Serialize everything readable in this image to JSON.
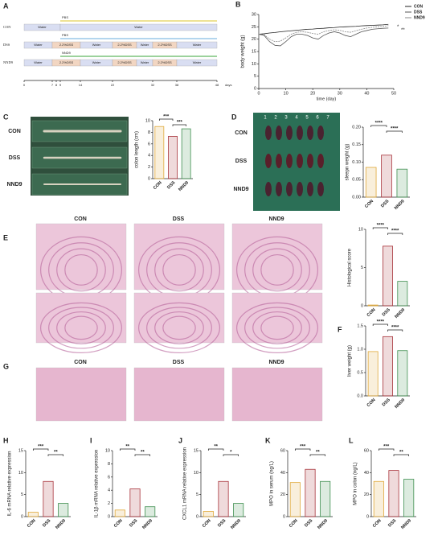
{
  "diagram": {
    "panel": "A",
    "rows": [
      {
        "name": "CON",
        "above": "PBS",
        "segments": [
          "Water",
          "Water"
        ]
      },
      {
        "name": "DSS",
        "above": "PBS",
        "segments": [
          "Water",
          "2.2%DSS",
          "Water",
          "2.2%DSS",
          "Water",
          "2.2%DSS",
          "Water"
        ]
      },
      {
        "name": "NND9",
        "above": "NND9",
        "segments": [
          "Water",
          "2.2%DSS",
          "Water",
          "2.2%DSS",
          "Water",
          "2.2%DSS",
          "Water"
        ]
      }
    ],
    "days": [
      "0",
      "7",
      "8",
      "9",
      "14",
      "22",
      "32",
      "38",
      "48"
    ],
    "unit": "days"
  },
  "photos": {
    "C": [
      "CON",
      "DSS",
      "NND9"
    ],
    "D": [
      "CON",
      "DSS",
      "NND9"
    ],
    "ruler": [
      "1",
      "2",
      "3",
      "4",
      "5",
      "6",
      "7"
    ]
  },
  "histology": {
    "columns": [
      "CON",
      "DSS",
      "NND9"
    ],
    "panel": "G",
    "columns_g": [
      "CON",
      "DSS",
      "NND9"
    ]
  },
  "chart_data": [
    {
      "type": "line",
      "panel": "B",
      "xlabel": "time (day)",
      "ylabel": "body weight (g)",
      "x": [
        0,
        2,
        4,
        6,
        8,
        10,
        12,
        14,
        16,
        18,
        20,
        22,
        24,
        26,
        28,
        30,
        32,
        34,
        36,
        38,
        40,
        42,
        44,
        46,
        48
      ],
      "series": [
        {
          "name": "CON",
          "color": "#222222",
          "values": [
            22,
            22.2,
            22.5,
            22.7,
            23,
            23.2,
            23.4,
            23.6,
            23.8,
            24,
            24.1,
            24.3,
            24.4,
            24.6,
            24.7,
            24.9,
            25,
            25.1,
            25.2,
            25.4,
            25.5,
            25.6,
            25.7,
            25.8,
            26
          ]
        },
        {
          "name": "DSS",
          "color": "#555555",
          "values": [
            22,
            21.5,
            19,
            17.5,
            17.3,
            19,
            21,
            22,
            22,
            21.5,
            20.5,
            20,
            21.5,
            22.5,
            23,
            22.5,
            21.5,
            21,
            22,
            23,
            23.5,
            24,
            24.2,
            24.4,
            24.5
          ]
        },
        {
          "name": "NND9",
          "color": "#888888",
          "values": [
            22,
            21.8,
            20,
            19,
            19.2,
            20.5,
            22,
            22.8,
            23,
            22.8,
            22.3,
            22,
            23,
            23.5,
            23.8,
            23.6,
            23,
            22.8,
            23.4,
            24,
            24.5,
            24.8,
            25,
            25.2,
            25.5
          ]
        }
      ],
      "xlim": [
        0,
        50
      ],
      "xticks": [
        0,
        10,
        20,
        30,
        40,
        50
      ],
      "ylim": [
        0,
        30
      ],
      "yticks": [
        0,
        5,
        10,
        15,
        20,
        25,
        30
      ],
      "annotations": [
        "*",
        "**"
      ],
      "legend": "upper right"
    },
    {
      "type": "bar",
      "panel": "C",
      "ylabel": "colon length (cm)",
      "categories": [
        "CON",
        "DSS",
        "NND9"
      ],
      "values": [
        9,
        7.3,
        8.6
      ],
      "colors": [
        "#e0a93a",
        "#a8323a",
        "#3f8f50"
      ],
      "ylim": [
        0,
        10
      ],
      "yticks": [
        0,
        2,
        4,
        6,
        8,
        10
      ],
      "significance": [
        "***",
        "***"
      ]
    },
    {
      "type": "bar",
      "panel": "D",
      "ylabel": "sleepn weight (g)",
      "categories": [
        "CON",
        "DSS",
        "NND9"
      ],
      "values": [
        0.085,
        0.12,
        0.08
      ],
      "colors": [
        "#e0a93a",
        "#a8323a",
        "#3f8f50"
      ],
      "ylim": [
        0,
        0.2
      ],
      "yticks": [
        {
          "value": 0,
          "label": "0.00"
        },
        {
          "value": 0.05,
          "label": "0.05"
        },
        {
          "value": 0.1,
          "label": "0.10"
        },
        {
          "value": 0.15,
          "label": "0.15"
        },
        {
          "value": 0.2,
          "label": "0.20"
        }
      ],
      "significance": [
        "****",
        "****"
      ]
    },
    {
      "type": "bar",
      "panel": "E",
      "ylabel": "Histological score",
      "categories": [
        "CON",
        "DSS",
        "NND9"
      ],
      "values": [
        0.1,
        7.8,
        3.2
      ],
      "colors": [
        "#e0a93a",
        "#a8323a",
        "#3f8f50"
      ],
      "ylim": [
        0,
        10
      ],
      "yticks": [
        0,
        5,
        10
      ],
      "significance": [
        "****",
        "****"
      ]
    },
    {
      "type": "bar",
      "panel": "F",
      "ylabel": "liver weight (g)",
      "categories": [
        "CON",
        "DSS",
        "NND9"
      ],
      "values": [
        0.95,
        1.27,
        0.97
      ],
      "colors": [
        "#e0a93a",
        "#a8323a",
        "#3f8f50"
      ],
      "ylim": [
        0,
        1.5
      ],
      "yticks": [
        {
          "value": 0,
          "label": "0.0"
        },
        {
          "value": 0.5,
          "label": "0.5"
        },
        {
          "value": 1,
          "label": "1.0"
        },
        {
          "value": 1.5,
          "label": "1.5"
        }
      ],
      "significance": [
        "****",
        "****"
      ]
    },
    {
      "type": "bar",
      "panel": "H",
      "ylabel": "IL-6 mRNA relative expression",
      "categories": [
        "CON",
        "DSS",
        "NND9"
      ],
      "values": [
        1,
        8,
        3
      ],
      "colors": [
        "#e0a93a",
        "#a8323a",
        "#3f8f50"
      ],
      "ylim": [
        0,
        15
      ],
      "yticks": [
        0,
        5,
        10,
        15
      ],
      "significance": [
        "***",
        "**"
      ]
    },
    {
      "type": "bar",
      "panel": "I",
      "ylabel": "IL-1β mRNA relative expression",
      "categories": [
        "CON",
        "DSS",
        "NND9"
      ],
      "values": [
        1,
        4.2,
        1.5
      ],
      "colors": [
        "#e0a93a",
        "#a8323a",
        "#3f8f50"
      ],
      "ylim": [
        0,
        10
      ],
      "yticks": [
        0,
        2,
        4,
        6,
        8,
        10
      ],
      "significance": [
        "**",
        "**"
      ]
    },
    {
      "type": "bar",
      "panel": "J",
      "ylabel": "CXCL1 mRNA relative expression",
      "categories": [
        "CON",
        "DSS",
        "NND9"
      ],
      "values": [
        1.2,
        8,
        3
      ],
      "colors": [
        "#e0a93a",
        "#a8323a",
        "#3f8f50"
      ],
      "ylim": [
        0,
        15
      ],
      "yticks": [
        0,
        5,
        10,
        15
      ],
      "significance": [
        "**",
        "*"
      ]
    },
    {
      "type": "bar",
      "panel": "K",
      "ylabel": "MPO in serum (ng/L)",
      "categories": [
        "CON",
        "DSS",
        "NND9"
      ],
      "values": [
        31,
        43,
        32
      ],
      "colors": [
        "#e0a93a",
        "#a8323a",
        "#3f8f50"
      ],
      "ylim": [
        0,
        60
      ],
      "yticks": [
        0,
        20,
        40,
        60
      ],
      "significance": [
        "***",
        "**"
      ]
    },
    {
      "type": "bar",
      "panel": "L",
      "ylabel": "MPO in colon (ng/L)",
      "categories": [
        "CON",
        "DSS",
        "NND9"
      ],
      "values": [
        32,
        42,
        34
      ],
      "colors": [
        "#e0a93a",
        "#a8323a",
        "#3f8f50"
      ],
      "ylim": [
        0,
        60
      ],
      "yticks": [
        0,
        20,
        40,
        60
      ],
      "significance": [
        "***",
        "**"
      ]
    }
  ]
}
